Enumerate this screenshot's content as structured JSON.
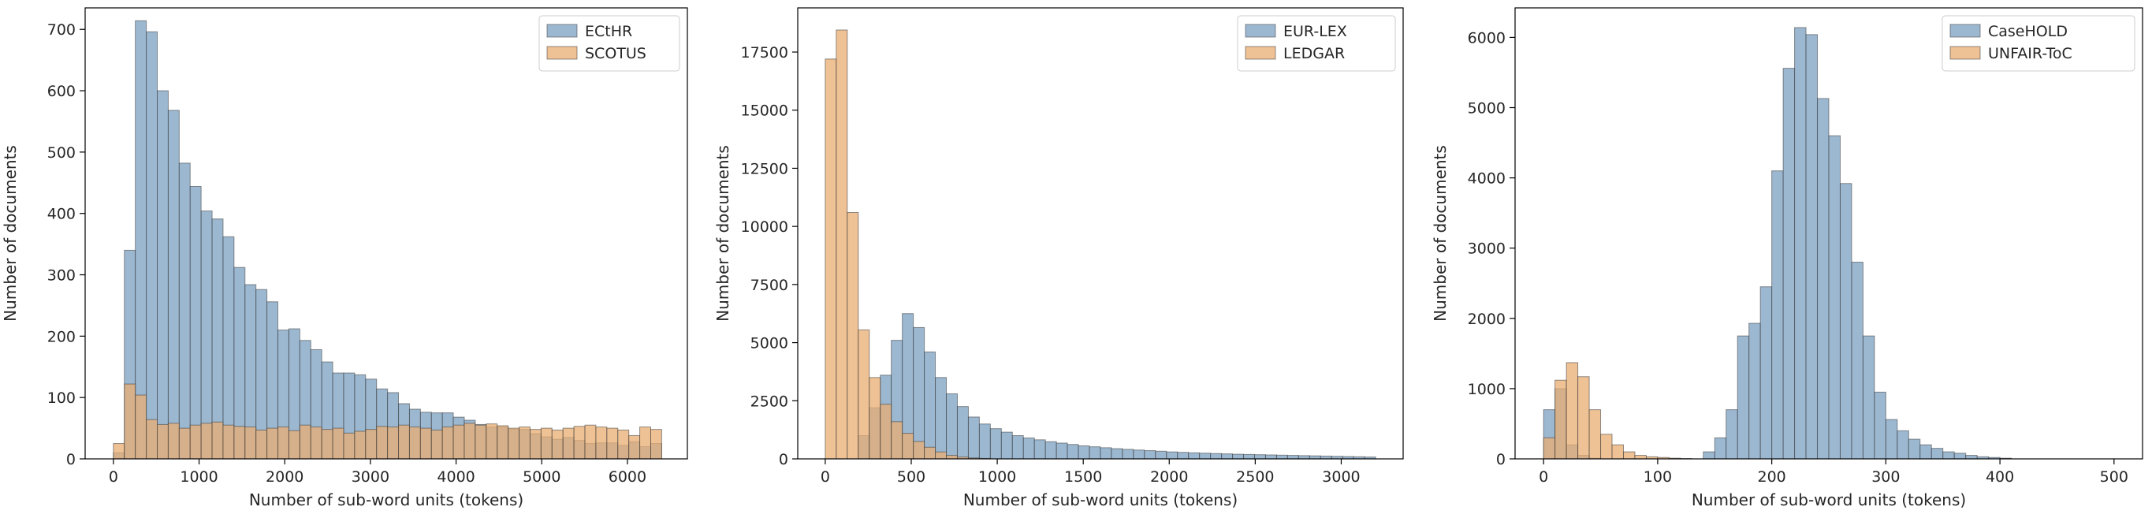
{
  "chart_data": [
    {
      "type": "bar",
      "subtype": "histogram",
      "xlabel": "Number of sub-word units (tokens)",
      "ylabel": "Number of documents",
      "xlim": [
        -330,
        6700
      ],
      "ylim": [
        0,
        735
      ],
      "xticks": [
        0,
        1000,
        2000,
        3000,
        4000,
        5000,
        6000
      ],
      "yticks": [
        0,
        100,
        200,
        300,
        400,
        500,
        600,
        700
      ],
      "legend_position": "upper-right",
      "bin_start": 0,
      "bin_width": 128,
      "series": [
        {
          "name": "ECtHR",
          "color": "#7ba0c2",
          "values": [
            10,
            340,
            714,
            696,
            600,
            568,
            482,
            444,
            404,
            391,
            362,
            312,
            284,
            276,
            256,
            210,
            212,
            193,
            178,
            158,
            140,
            140,
            137,
            130,
            114,
            108,
            90,
            81,
            76,
            75,
            75,
            68,
            63,
            56,
            52,
            52,
            48,
            48,
            41,
            36,
            32,
            35,
            30,
            25,
            26,
            26,
            22,
            28,
            20,
            25
          ]
        },
        {
          "name": "SCOTUS",
          "color": "#e9ad72",
          "values": [
            25,
            122,
            104,
            64,
            56,
            58,
            50,
            55,
            58,
            60,
            55,
            53,
            52,
            47,
            50,
            52,
            46,
            55,
            52,
            48,
            50,
            42,
            45,
            48,
            53,
            52,
            55,
            52,
            50,
            47,
            52,
            55,
            58,
            55,
            57,
            54,
            50,
            52,
            48,
            50,
            47,
            50,
            53,
            55,
            52,
            50,
            47,
            38,
            52,
            48
          ]
        }
      ]
    },
    {
      "type": "bar",
      "subtype": "histogram",
      "xlabel": "Number of sub-word units (tokens)",
      "ylabel": "Number of documents",
      "xlim": [
        -160,
        3360
      ],
      "ylim": [
        0,
        19400
      ],
      "xticks": [
        0,
        500,
        1000,
        1500,
        2000,
        2500,
        3000
      ],
      "yticks": [
        0,
        2500,
        5000,
        7500,
        10000,
        12500,
        15000,
        17500
      ],
      "legend_position": "upper-right",
      "bin_start": 0,
      "bin_width": 64,
      "series": [
        {
          "name": "EUR-LEX",
          "color": "#7ba0c2",
          "values": [
            0,
            0,
            0,
            1000,
            2200,
            3600,
            5100,
            6250,
            5650,
            4600,
            3500,
            2800,
            2250,
            1800,
            1500,
            1300,
            1150,
            1000,
            900,
            820,
            740,
            680,
            620,
            560,
            520,
            480,
            440,
            410,
            380,
            355,
            330,
            300,
            280,
            260,
            245,
            230,
            215,
            200,
            190,
            180,
            170,
            160,
            150,
            140,
            130,
            120,
            110,
            100,
            90,
            80
          ]
        },
        {
          "name": "LEDGAR",
          "color": "#e9ad72",
          "values": [
            17200,
            18450,
            10600,
            5550,
            3500,
            2350,
            1600,
            1100,
            750,
            500,
            300,
            150,
            80,
            40,
            20,
            0,
            0,
            0,
            0,
            0,
            0,
            0,
            0,
            0,
            0,
            0,
            0,
            0,
            0,
            0,
            0,
            0,
            0,
            0,
            0,
            0,
            0,
            0,
            0,
            0,
            0,
            0,
            0,
            0,
            0,
            0,
            0,
            0,
            0,
            0
          ]
        }
      ]
    },
    {
      "type": "bar",
      "subtype": "histogram",
      "xlabel": "Number of sub-word units (tokens)",
      "ylabel": "Number of documents",
      "xlim": [
        -25,
        525
      ],
      "ylim": [
        0,
        6420
      ],
      "xticks": [
        0,
        100,
        200,
        300,
        400,
        500
      ],
      "yticks": [
        0,
        1000,
        2000,
        3000,
        4000,
        5000,
        6000
      ],
      "legend_position": "upper-right",
      "bin_start": 0,
      "bin_width": 10,
      "series": [
        {
          "name": "CaseHOLD",
          "color": "#7ba0c2",
          "values": [
            700,
            1000,
            200,
            50,
            10,
            0,
            0,
            0,
            0,
            0,
            0,
            0,
            0,
            0,
            100,
            300,
            700,
            1750,
            1930,
            2450,
            4100,
            5560,
            6140,
            6040,
            5130,
            4600,
            3920,
            2800,
            1750,
            950,
            560,
            400,
            280,
            200,
            150,
            100,
            80,
            50,
            30,
            20,
            10,
            0,
            0,
            0,
            0,
            0,
            0,
            0,
            0,
            0
          ]
        },
        {
          "name": "UNFAIR-ToC",
          "color": "#e9ad72",
          "values": [
            300,
            1120,
            1370,
            1170,
            700,
            350,
            200,
            100,
            50,
            30,
            20,
            10,
            5,
            0,
            0,
            0,
            0,
            0,
            0,
            0,
            0,
            0,
            0,
            0,
            0,
            0,
            0,
            0,
            0,
            0,
            0,
            0,
            0,
            0,
            0,
            0,
            0,
            0,
            0,
            0,
            0,
            0,
            0,
            0,
            0,
            0,
            0,
            0,
            0,
            0
          ]
        }
      ]
    }
  ]
}
